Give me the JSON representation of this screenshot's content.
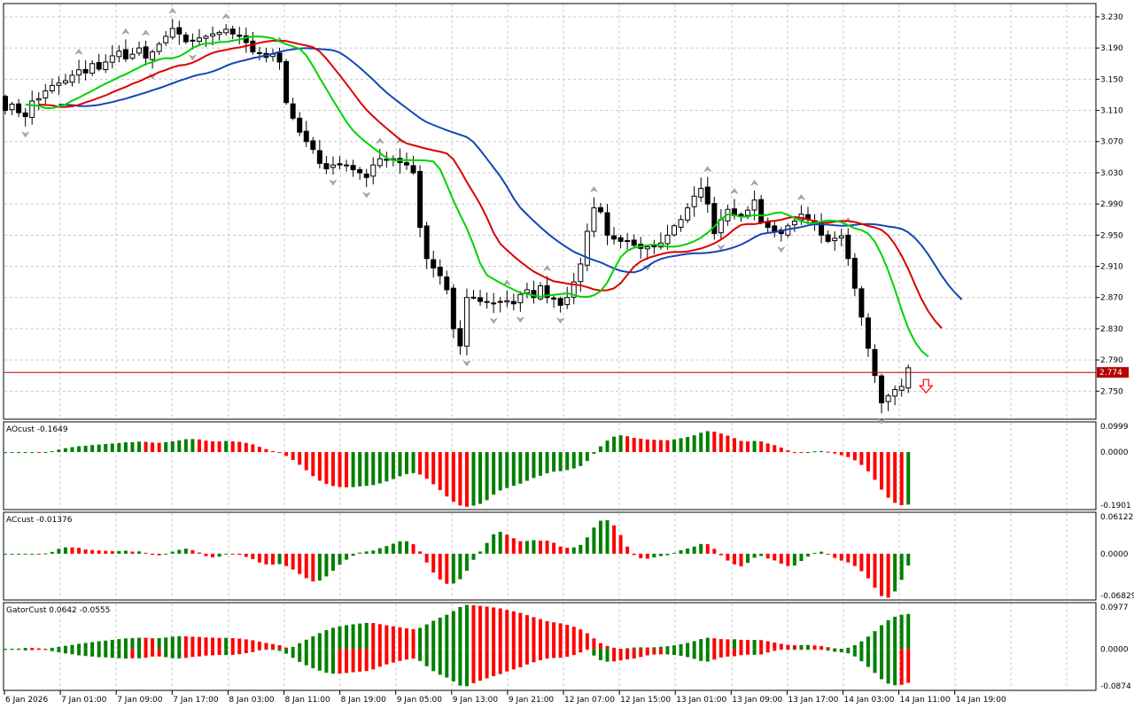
{
  "chart_data": {
    "type": "candlestick",
    "price_axis": {
      "ticks": [
        "3.230",
        "3.190",
        "3.150",
        "3.110",
        "3.070",
        "3.030",
        "2.990",
        "2.950",
        "2.910",
        "2.870",
        "2.830",
        "2.790",
        "2.750"
      ],
      "range": [
        2.714,
        3.247
      ]
    },
    "current_price": {
      "value": 2.774,
      "label": "2.774"
    },
    "sell_signal": "down-arrow",
    "time_labels": [
      "6 Jan 2026",
      "7 Jan 01:00",
      "7 Jan 09:00",
      "7 Jan 17:00",
      "8 Jan 03:00",
      "8 Jan 11:00",
      "8 Jan 19:00",
      "9 Jan 05:00",
      "9 Jan 13:00",
      "9 Jan 21:00",
      "12 Jan 07:00",
      "12 Jan 15:00",
      "13 Jan 01:00",
      "13 Jan 09:00",
      "13 Jan 17:00",
      "14 Jan 03:00",
      "14 Jan 11:00",
      "14 Jan 19:00"
    ],
    "close": [
      3.11,
      3.118,
      3.107,
      3.102,
      3.122,
      3.125,
      3.135,
      3.142,
      3.145,
      3.148,
      3.155,
      3.162,
      3.158,
      3.17,
      3.163,
      3.172,
      3.18,
      3.186,
      3.176,
      3.182,
      3.19,
      3.177,
      3.185,
      3.195,
      3.205,
      3.215,
      3.208,
      3.198,
      3.2,
      3.203,
      3.205,
      3.208,
      3.21,
      3.214,
      3.208,
      3.205,
      3.197,
      3.185,
      3.184,
      3.178,
      3.182,
      3.172,
      3.12,
      3.1,
      3.082,
      3.07,
      3.06,
      3.042,
      3.035,
      3.04,
      3.04,
      3.04,
      3.034,
      3.03,
      3.024,
      3.04,
      3.048,
      3.046,
      3.048,
      3.043,
      3.04,
      3.03,
      2.96,
      2.92,
      2.908,
      2.898,
      2.88,
      2.83,
      2.808,
      2.87,
      2.87,
      2.865,
      2.864,
      2.863,
      2.865,
      2.866,
      2.862,
      2.874,
      2.88,
      2.87,
      2.885,
      2.87,
      2.868,
      2.86,
      2.87,
      2.89,
      2.913,
      2.955,
      2.985,
      2.98,
      2.95,
      2.945,
      2.942,
      2.943,
      2.937,
      2.933,
      2.935,
      2.935,
      2.94,
      2.95,
      2.962,
      2.97,
      2.985,
      3.0,
      3.01,
      2.99,
      2.952,
      2.97,
      2.983,
      2.975,
      2.975,
      2.982,
      2.995,
      2.966,
      2.96,
      2.955,
      2.952,
      2.962,
      2.968,
      2.977,
      2.97,
      2.965,
      2.95,
      2.942,
      2.946,
      2.949,
      2.92,
      2.882,
      2.845,
      2.805,
      2.77,
      2.735,
      2.744,
      2.752,
      2.756,
      2.78
    ],
    "indicator_lines": [
      {
        "name": "jaw",
        "color": "#1446b4"
      },
      {
        "name": "teeth",
        "color": "#dc0000"
      },
      {
        "name": "lips",
        "color": "#00d200"
      }
    ],
    "indicators": [
      {
        "title": "AOcust -0.1649",
        "max_label": "0.0999",
        "zero_label": "0.0000",
        "min_label": "-0.1901",
        "max": 0.0999,
        "min": -0.1901
      },
      {
        "title": "ACcust -0.01376",
        "max_label": "0.06122",
        "zero_label": "0.0000",
        "min_label": "-0.06829",
        "max": 0.06122,
        "min": -0.06829
      },
      {
        "title": "GatorCust 0.0642 -0.0555",
        "max_label": "0.0977",
        "zero_label": "0.0000",
        "min_label": "-0.0874",
        "max": 0.0977,
        "min": -0.0874
      }
    ],
    "colors": {
      "up": "#008000",
      "down": "#ff0000",
      "grid": "#c8c8c8",
      "price_line": "#b40000"
    }
  }
}
